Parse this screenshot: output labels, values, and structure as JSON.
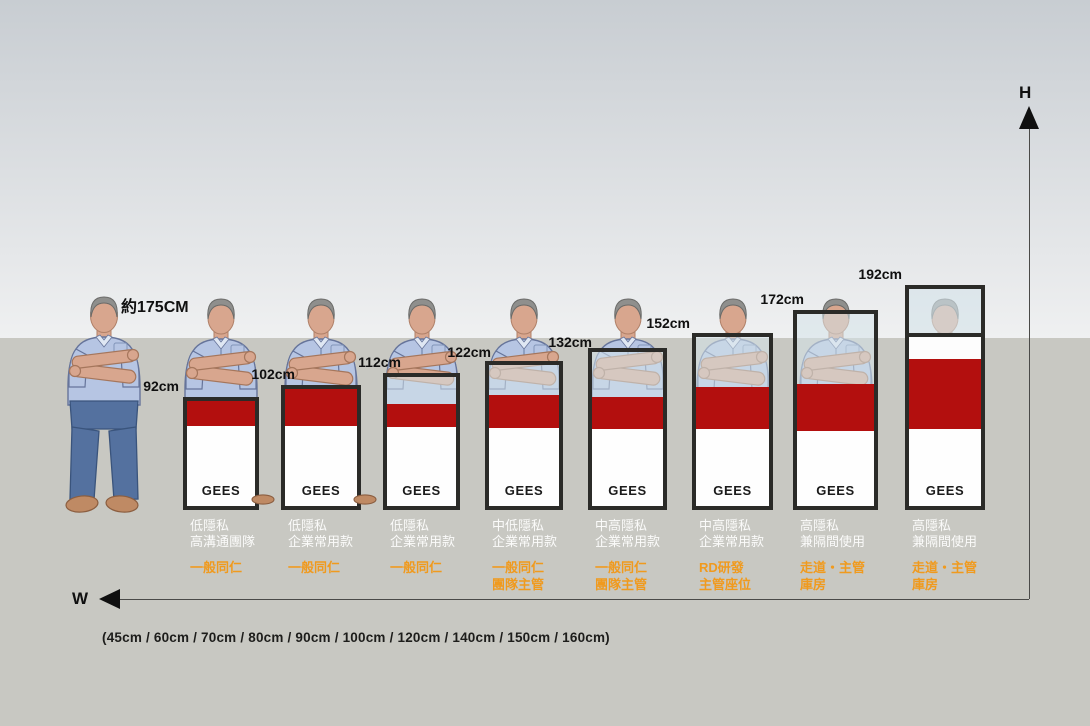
{
  "scene": {
    "person_height_label": "約175CM",
    "axis": {
      "h_label": "H",
      "w_label": "W",
      "width_options_label": "(45cm / 60cm / 70cm / 80cm / 90cm / 100cm / 120cm / 140cm / 150cm / 160cm)"
    }
  },
  "brand_label": "GEES",
  "colors": {
    "accent_red": "#b30f0e",
    "accent_orange": "#f09a1e",
    "frame_dark": "#2b2b28",
    "floor_gray": "#c8c8c2"
  },
  "panels": [
    {
      "height_label": "92cm",
      "privacy_lines": [
        "低隱私",
        "高溝通團隊"
      ],
      "user_lines": [
        "一般同仁"
      ]
    },
    {
      "height_label": "102cm",
      "privacy_lines": [
        "低隱私",
        "企業常用款"
      ],
      "user_lines": [
        "一般同仁"
      ]
    },
    {
      "height_label": "112cm",
      "privacy_lines": [
        "低隱私",
        "企業常用款"
      ],
      "user_lines": [
        "一般同仁"
      ]
    },
    {
      "height_label": "122cm",
      "privacy_lines": [
        "中低隱私",
        "企業常用款"
      ],
      "user_lines": [
        "一般同仁",
        "團隊主管"
      ]
    },
    {
      "height_label": "132cm",
      "privacy_lines": [
        "中高隱私",
        "企業常用款"
      ],
      "user_lines": [
        "一般同仁",
        "團隊主管"
      ]
    },
    {
      "height_label": "152cm",
      "privacy_lines": [
        "中高隱私",
        "企業常用款"
      ],
      "user_lines": [
        "RD研發",
        "主管座位"
      ]
    },
    {
      "height_label": "172cm",
      "privacy_lines": [
        "高隱私",
        "兼隔間使用"
      ],
      "user_lines": [
        "走道・主管",
        "庫房"
      ]
    },
    {
      "height_label": "192cm",
      "privacy_lines": [
        "高隱私",
        "兼隔間使用"
      ],
      "user_lines": [
        "走道・主管",
        "庫房"
      ]
    }
  ],
  "chart_data": {
    "type": "bar",
    "title": "",
    "categories": [
      "低隱私 高溝通團隊",
      "低隱私 企業常用款",
      "低隱私 企業常用款",
      "中低隱私 企業常用款",
      "中高隱私 企業常用款",
      "中高隱私 企業常用款",
      "高隱私 兼隔間使用",
      "高隱私 兼隔間使用"
    ],
    "values": [
      92,
      102,
      112,
      122,
      132,
      152,
      172,
      192
    ],
    "unit": "cm",
    "xlabel": "W",
    "ylabel": "H",
    "reference_person_height_label": "約175CM",
    "width_options_cm": [
      45,
      60,
      70,
      80,
      90,
      100,
      120,
      140,
      150,
      160
    ]
  }
}
